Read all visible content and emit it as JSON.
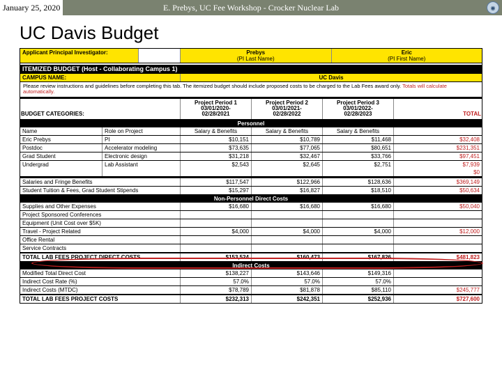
{
  "header": {
    "date": "January 25, 2020",
    "center": "E. Prebys, UC Fee Workshop - Crocker Nuclear Lab"
  },
  "title": "UC Davis Budget",
  "pi_row": {
    "label": "Applicant Principal Investigator:",
    "last": "Prebys",
    "last_lbl": "(PI Last Name)",
    "first": "Eric",
    "first_lbl": "(PI First Name)"
  },
  "itemized_label": "ITEMIZED BUDGET (Host - Collaborating Campus 1)",
  "campus": {
    "label": "CAMPUS NAME:",
    "value": "UC Davis"
  },
  "instruction": {
    "a": "Please review instructions and guidelines before completing this tab. The itemized budget should include proposed costs to be charged to the Lab Fees award only. ",
    "b": "Totals will calculate automatically."
  },
  "periods": {
    "budget_cat": "BUDGET CATEGORIES:",
    "p1a": "Project Period 1",
    "p1b": "03/01/2020-",
    "p1c": "02/28/2021",
    "p2a": "Project Period 2",
    "p2b": "03/01/2021-",
    "p2c": "02/28/2022",
    "p3a": "Project Period 3",
    "p3b": "03/01/2022-",
    "p3c": "02/28/2023",
    "total": "TOTAL"
  },
  "sections": {
    "personnel": "Personnel",
    "nonpersonnel": "Non-Personnel Direct Costs",
    "indirect": "Indirect Costs"
  },
  "pers_hdr": {
    "name": "Name",
    "role": "Role on Project",
    "sb": "Salary & Benefits"
  },
  "personnel": [
    {
      "name": "Eric Prebys",
      "role": "PI",
      "p1": "$10,151",
      "p2": "$10,789",
      "p3": "$11,468",
      "tot": "$32,408"
    },
    {
      "name": "Postdoc",
      "role": "Accelerator modeling",
      "p1": "$73,635",
      "p2": "$77,065",
      "p3": "$80,651",
      "tot": "$231,351"
    },
    {
      "name": "Grad Student",
      "role": "Electronic design",
      "p1": "$31,218",
      "p2": "$32,467",
      "p3": "$33,766",
      "tot": "$97,451"
    },
    {
      "name": "Undergrad",
      "role": "Lab Assistant",
      "p1": "$2,543",
      "p2": "$2,645",
      "p3": "$2,751",
      "tot": "$7,939"
    }
  ],
  "zero": "$0",
  "sfb": {
    "label": "Salaries and Fringe Benefits",
    "p1": "$117,547",
    "p2": "$122,966",
    "p3": "$128,636",
    "tot": "$369,149"
  },
  "stu": {
    "label": "Student Tuition & Fees, Grad Student Stipends",
    "p1": "$15,297",
    "p2": "$16,827",
    "p3": "$18,510",
    "tot": "$50,634"
  },
  "np": [
    {
      "label": "Supplies and Other Expenses",
      "p1": "$16,680",
      "p2": "$16,680",
      "p3": "$16,680",
      "tot": "$50,040"
    },
    {
      "label": "Project Sponsored Conferences",
      "p1": "",
      "p2": "",
      "p3": "",
      "tot": ""
    },
    {
      "label": "Equipment (Unit Cost over $5K)",
      "p1": "",
      "p2": "",
      "p3": "",
      "tot": ""
    },
    {
      "label": "Travel - Project Related",
      "p1": "$4,000",
      "p2": "$4,000",
      "p3": "$4,000",
      "tot": "$12,000"
    },
    {
      "label": "Office Rental",
      "p1": "",
      "p2": "",
      "p3": "",
      "tot": ""
    },
    {
      "label": "Service Contracts",
      "p1": "",
      "p2": "",
      "p3": "",
      "tot": ""
    }
  ],
  "tdc": {
    "label": "TOTAL LAB FEES PROJECT DIRECT COSTS",
    "p1": "$153,524",
    "p2": "$160,473",
    "p3": "$167,826",
    "tot": "$481,823"
  },
  "ind": [
    {
      "label": "Modified Total Direct Cost",
      "p1": "$138,227",
      "p2": "$143,646",
      "p3": "$149,316",
      "tot": ""
    },
    {
      "label": "Indirect Cost Rate (%)",
      "p1": "57.0%",
      "p2": "57.0%",
      "p3": "57.0%",
      "tot": ""
    },
    {
      "label": "Indirect Costs (MTDC)",
      "p1": "$78,789",
      "p2": "$81,878",
      "p3": "$85,110",
      "tot": "$245,777"
    }
  ],
  "total": {
    "label": "TOTAL LAB FEES PROJECT COSTS",
    "p1": "$232,313",
    "p2": "$242,351",
    "p3": "$252,936",
    "tot": "$727,600"
  },
  "colors": {
    "header_bg": "#7a8270",
    "yellow": "#ffe400",
    "red_text": "#c02020"
  }
}
